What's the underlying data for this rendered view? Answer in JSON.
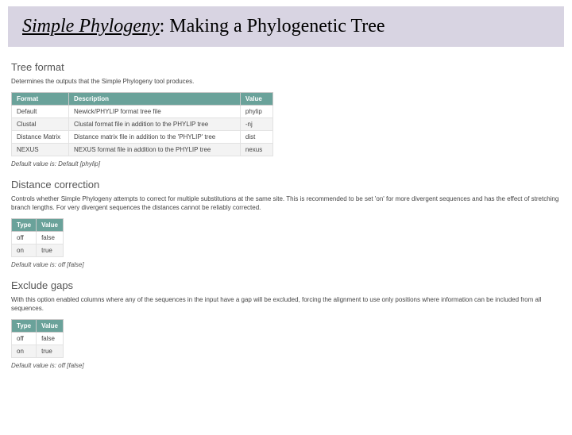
{
  "title": {
    "italic_part": "Simple Phylogeny",
    "rest": ": Making a Phylogenetic Tree"
  },
  "sections": {
    "tree_format": {
      "heading": "Tree format",
      "description": "Determines the outputs that the Simple Phylogeny tool produces.",
      "table": {
        "columns": [
          "Format",
          "Description",
          "Value"
        ],
        "rows": [
          [
            "Default",
            "Newick/PHYLIP format tree file",
            "phylip"
          ],
          [
            "Clustal",
            "Clustal format file in addition to the PHYLIP tree",
            "-nj"
          ],
          [
            "Distance Matrix",
            "Distance matrix file in addition to the 'PHYLIP' tree",
            "dist"
          ],
          [
            "NEXUS",
            "NEXUS format file in addition to the PHYLIP tree",
            "nexus"
          ]
        ]
      },
      "default_note": "Default value is: Default [phylip]"
    },
    "distance_correction": {
      "heading": "Distance correction",
      "description": "Controls whether Simple Phylogeny attempts to correct for multiple substitutions at the same site. This is recommended to be set 'on' for more divergent sequences and has the effect of stretching branch lengths. For very divergent sequences the distances cannot be reliably corrected.",
      "table": {
        "columns": [
          "Type",
          "Value"
        ],
        "rows": [
          [
            "off",
            "false"
          ],
          [
            "on",
            "true"
          ]
        ]
      },
      "default_note": "Default value is: off [false]"
    },
    "exclude_gaps": {
      "heading": "Exclude gaps",
      "description": "With this option enabled columns where any of the sequences in the input have a gap will be excluded, forcing the alignment to use only positions where information can be included from all sequences.",
      "table": {
        "columns": [
          "Type",
          "Value"
        ],
        "rows": [
          [
            "off",
            "false"
          ],
          [
            "on",
            "true"
          ]
        ]
      },
      "default_note": "Default value is: off [false]"
    }
  },
  "colors": {
    "title_bg": "#d8d4e2",
    "table_header_bg": "#6aa29a",
    "table_header_text": "#ffffff",
    "row_alt_bg": "#f3f3f3",
    "text_muted": "#555555"
  }
}
